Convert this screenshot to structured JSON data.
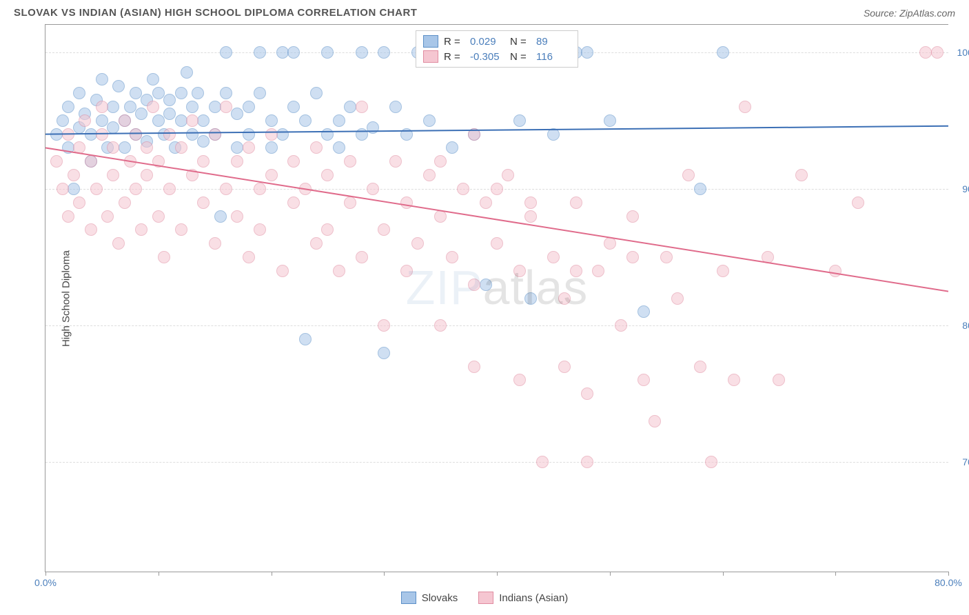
{
  "header": {
    "title": "SLOVAK VS INDIAN (ASIAN) HIGH SCHOOL DIPLOMA CORRELATION CHART",
    "source": "Source: ZipAtlas.com"
  },
  "chart": {
    "type": "scatter",
    "y_axis_title": "High School Diploma",
    "watermark_a": "ZIP",
    "watermark_b": "atlas",
    "xlim": [
      0,
      80
    ],
    "ylim": [
      62,
      102
    ],
    "x_ticks": [
      0,
      10,
      20,
      30,
      40,
      50,
      60,
      70,
      80
    ],
    "x_tick_labels_visible": {
      "0": "0.0%",
      "80": "80.0%"
    },
    "y_gridlines": [
      70,
      80,
      90,
      100
    ],
    "y_labels": {
      "70": "70.0%",
      "80": "80.0%",
      "90": "90.0%",
      "100": "100.0%"
    },
    "background_color": "#ffffff",
    "grid_color": "#dddddd",
    "axis_color": "#999999",
    "label_color": "#4a7ebb",
    "dot_radius": 9,
    "dot_opacity": 0.55,
    "series": [
      {
        "name": "Slovaks",
        "color_fill": "#a8c6e8",
        "color_stroke": "#5b8fc7",
        "line_color": "#3b6fb5",
        "r_label": "R =",
        "r_value": "0.029",
        "n_label": "N =",
        "n_value": "89",
        "trend": {
          "x1": 0,
          "y1": 94.0,
          "x2": 80,
          "y2": 94.6
        },
        "points": [
          [
            1,
            94
          ],
          [
            1.5,
            95
          ],
          [
            2,
            93
          ],
          [
            2,
            96
          ],
          [
            2.5,
            90
          ],
          [
            3,
            94.5
          ],
          [
            3,
            97
          ],
          [
            3.5,
            95.5
          ],
          [
            4,
            94
          ],
          [
            4,
            92
          ],
          [
            4.5,
            96.5
          ],
          [
            5,
            95
          ],
          [
            5,
            98
          ],
          [
            5.5,
            93
          ],
          [
            6,
            96
          ],
          [
            6,
            94.5
          ],
          [
            6.5,
            97.5
          ],
          [
            7,
            95
          ],
          [
            7,
            93
          ],
          [
            7.5,
            96
          ],
          [
            8,
            97
          ],
          [
            8,
            94
          ],
          [
            8.5,
            95.5
          ],
          [
            9,
            96.5
          ],
          [
            9,
            93.5
          ],
          [
            9.5,
            98
          ],
          [
            10,
            95
          ],
          [
            10,
            97
          ],
          [
            10.5,
            94
          ],
          [
            11,
            95.5
          ],
          [
            11,
            96.5
          ],
          [
            11.5,
            93
          ],
          [
            12,
            97
          ],
          [
            12,
            95
          ],
          [
            12.5,
            98.5
          ],
          [
            13,
            94
          ],
          [
            13,
            96
          ],
          [
            13.5,
            97
          ],
          [
            14,
            95
          ],
          [
            14,
            93.5
          ],
          [
            15,
            96
          ],
          [
            15,
            94
          ],
          [
            15.5,
            88
          ],
          [
            16,
            97
          ],
          [
            16,
            100
          ],
          [
            17,
            95.5
          ],
          [
            17,
            93
          ],
          [
            18,
            96
          ],
          [
            18,
            94
          ],
          [
            19,
            100
          ],
          [
            19,
            97
          ],
          [
            20,
            95
          ],
          [
            20,
            93
          ],
          [
            21,
            100
          ],
          [
            21,
            94
          ],
          [
            22,
            96
          ],
          [
            22,
            100
          ],
          [
            23,
            95
          ],
          [
            23,
            79
          ],
          [
            24,
            97
          ],
          [
            25,
            100
          ],
          [
            25,
            94
          ],
          [
            26,
            95
          ],
          [
            26,
            93
          ],
          [
            27,
            96
          ],
          [
            28,
            100
          ],
          [
            28,
            94
          ],
          [
            29,
            94.5
          ],
          [
            30,
            100
          ],
          [
            30,
            78
          ],
          [
            31,
            96
          ],
          [
            32,
            94
          ],
          [
            33,
            100
          ],
          [
            34,
            95
          ],
          [
            35,
            100
          ],
          [
            36,
            93
          ],
          [
            37,
            100
          ],
          [
            38,
            94
          ],
          [
            39,
            83
          ],
          [
            40,
            100
          ],
          [
            42,
            95
          ],
          [
            43,
            82
          ],
          [
            45,
            94
          ],
          [
            47,
            100
          ],
          [
            48,
            100
          ],
          [
            50,
            95
          ],
          [
            53,
            81
          ],
          [
            58,
            90
          ],
          [
            60,
            100
          ]
        ]
      },
      {
        "name": "Indians (Asian)",
        "color_fill": "#f5c6d1",
        "color_stroke": "#e08ba0",
        "line_color": "#e06b8b",
        "r_label": "R =",
        "r_value": "-0.305",
        "n_label": "N =",
        "n_value": "116",
        "trend": {
          "x1": 0,
          "y1": 93.0,
          "x2": 80,
          "y2": 82.5
        },
        "points": [
          [
            1,
            92
          ],
          [
            1.5,
            90
          ],
          [
            2,
            94
          ],
          [
            2,
            88
          ],
          [
            2.5,
            91
          ],
          [
            3,
            89
          ],
          [
            3,
            93
          ],
          [
            3.5,
            95
          ],
          [
            4,
            87
          ],
          [
            4,
            92
          ],
          [
            4.5,
            90
          ],
          [
            5,
            94
          ],
          [
            5,
            96
          ],
          [
            5.5,
            88
          ],
          [
            6,
            91
          ],
          [
            6,
            93
          ],
          [
            6.5,
            86
          ],
          [
            7,
            95
          ],
          [
            7,
            89
          ],
          [
            7.5,
            92
          ],
          [
            8,
            94
          ],
          [
            8,
            90
          ],
          [
            8.5,
            87
          ],
          [
            9,
            93
          ],
          [
            9,
            91
          ],
          [
            9.5,
            96
          ],
          [
            10,
            88
          ],
          [
            10,
            92
          ],
          [
            10.5,
            85
          ],
          [
            11,
            94
          ],
          [
            11,
            90
          ],
          [
            12,
            93
          ],
          [
            12,
            87
          ],
          [
            13,
            91
          ],
          [
            13,
            95
          ],
          [
            14,
            89
          ],
          [
            14,
            92
          ],
          [
            15,
            86
          ],
          [
            15,
            94
          ],
          [
            16,
            90
          ],
          [
            16,
            96
          ],
          [
            17,
            88
          ],
          [
            17,
            92
          ],
          [
            18,
            85
          ],
          [
            18,
            93
          ],
          [
            19,
            90
          ],
          [
            19,
            87
          ],
          [
            20,
            94
          ],
          [
            20,
            91
          ],
          [
            21,
            84
          ],
          [
            22,
            92
          ],
          [
            22,
            89
          ],
          [
            23,
            90
          ],
          [
            24,
            86
          ],
          [
            24,
            93
          ],
          [
            25,
            87
          ],
          [
            25,
            91
          ],
          [
            26,
            84
          ],
          [
            27,
            89
          ],
          [
            27,
            92
          ],
          [
            28,
            85
          ],
          [
            28,
            96
          ],
          [
            29,
            90
          ],
          [
            30,
            87
          ],
          [
            30,
            80
          ],
          [
            31,
            92
          ],
          [
            32,
            84
          ],
          [
            32,
            89
          ],
          [
            33,
            86
          ],
          [
            34,
            91
          ],
          [
            35,
            80
          ],
          [
            35,
            88
          ],
          [
            36,
            85
          ],
          [
            37,
            90
          ],
          [
            38,
            83
          ],
          [
            38,
            77
          ],
          [
            39,
            89
          ],
          [
            40,
            86
          ],
          [
            41,
            91
          ],
          [
            42,
            76
          ],
          [
            42,
            84
          ],
          [
            43,
            88
          ],
          [
            44,
            70
          ],
          [
            45,
            85
          ],
          [
            46,
            82
          ],
          [
            46,
            77
          ],
          [
            47,
            89
          ],
          [
            48,
            75
          ],
          [
            48,
            70
          ],
          [
            49,
            84
          ],
          [
            50,
            86
          ],
          [
            51,
            80
          ],
          [
            52,
            88
          ],
          [
            53,
            76
          ],
          [
            54,
            73
          ],
          [
            55,
            85
          ],
          [
            56,
            82
          ],
          [
            57,
            91
          ],
          [
            58,
            77
          ],
          [
            59,
            70
          ],
          [
            60,
            84
          ],
          [
            61,
            76
          ],
          [
            62,
            96
          ],
          [
            64,
            85
          ],
          [
            65,
            76
          ],
          [
            67,
            91
          ],
          [
            70,
            84
          ],
          [
            72,
            89
          ],
          [
            78,
            100
          ],
          [
            79,
            100
          ],
          [
            35,
            92
          ],
          [
            38,
            94
          ],
          [
            40,
            90
          ],
          [
            43,
            89
          ],
          [
            47,
            84
          ],
          [
            52,
            85
          ]
        ]
      }
    ],
    "legend_bottom": [
      {
        "name": "Slovaks",
        "fill": "#a8c6e8",
        "stroke": "#5b8fc7"
      },
      {
        "name": "Indians (Asian)",
        "fill": "#f5c6d1",
        "stroke": "#e08ba0"
      }
    ]
  }
}
